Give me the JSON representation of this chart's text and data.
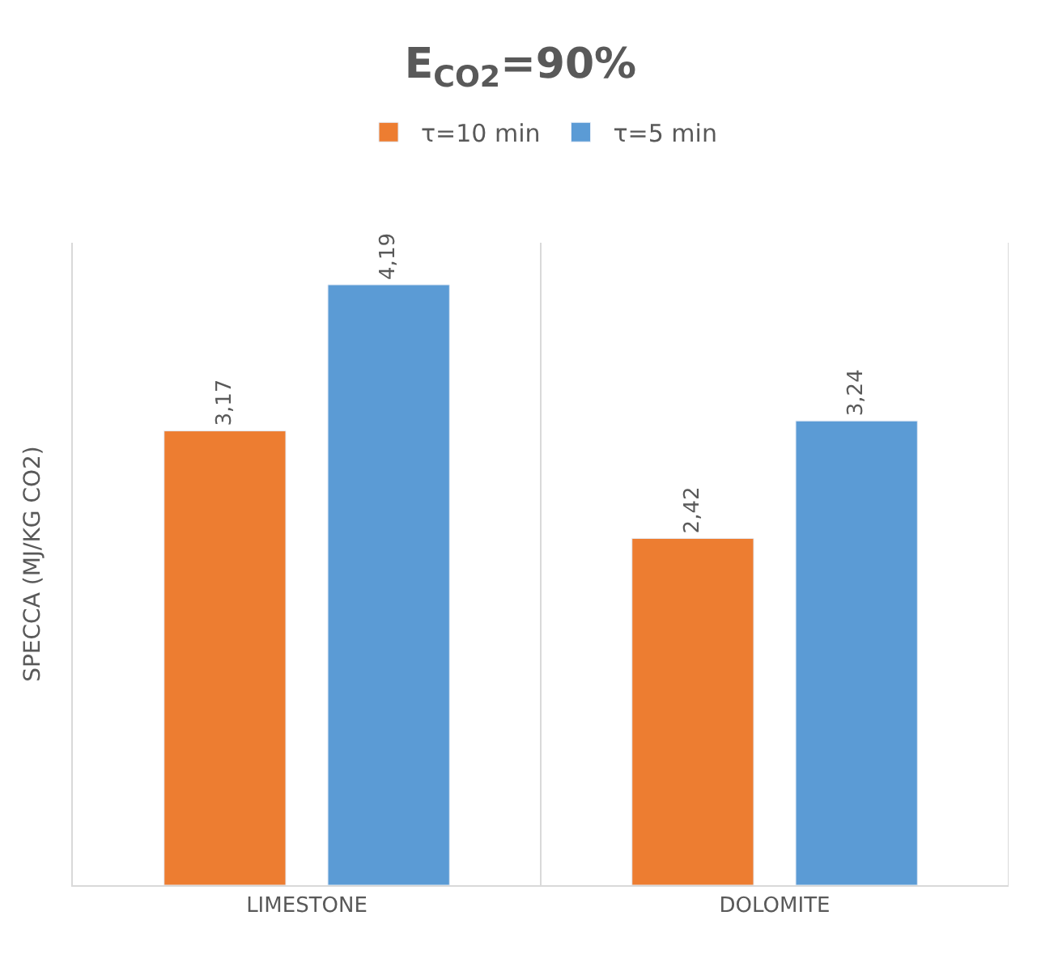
{
  "chart_data": {
    "type": "bar",
    "title": "E$_{CO2}$=90%",
    "ylabel": "SPECCA (MJ/KG CO2)",
    "categories": [
      "LIMESTONE",
      "DOLOMITE"
    ],
    "series": [
      {
        "name": "τ=10 min",
        "color": "#ed7d31",
        "values": [
          3.17,
          2.42
        ],
        "value_labels": [
          "3,17",
          "2,42"
        ]
      },
      {
        "name": "τ=5 min",
        "color": "#5b9bd5",
        "values": [
          4.19,
          3.24
        ],
        "value_labels": [
          "4,19",
          "3,24"
        ]
      }
    ],
    "grid": "x",
    "legend": "top",
    "tick_labels": "x"
  }
}
